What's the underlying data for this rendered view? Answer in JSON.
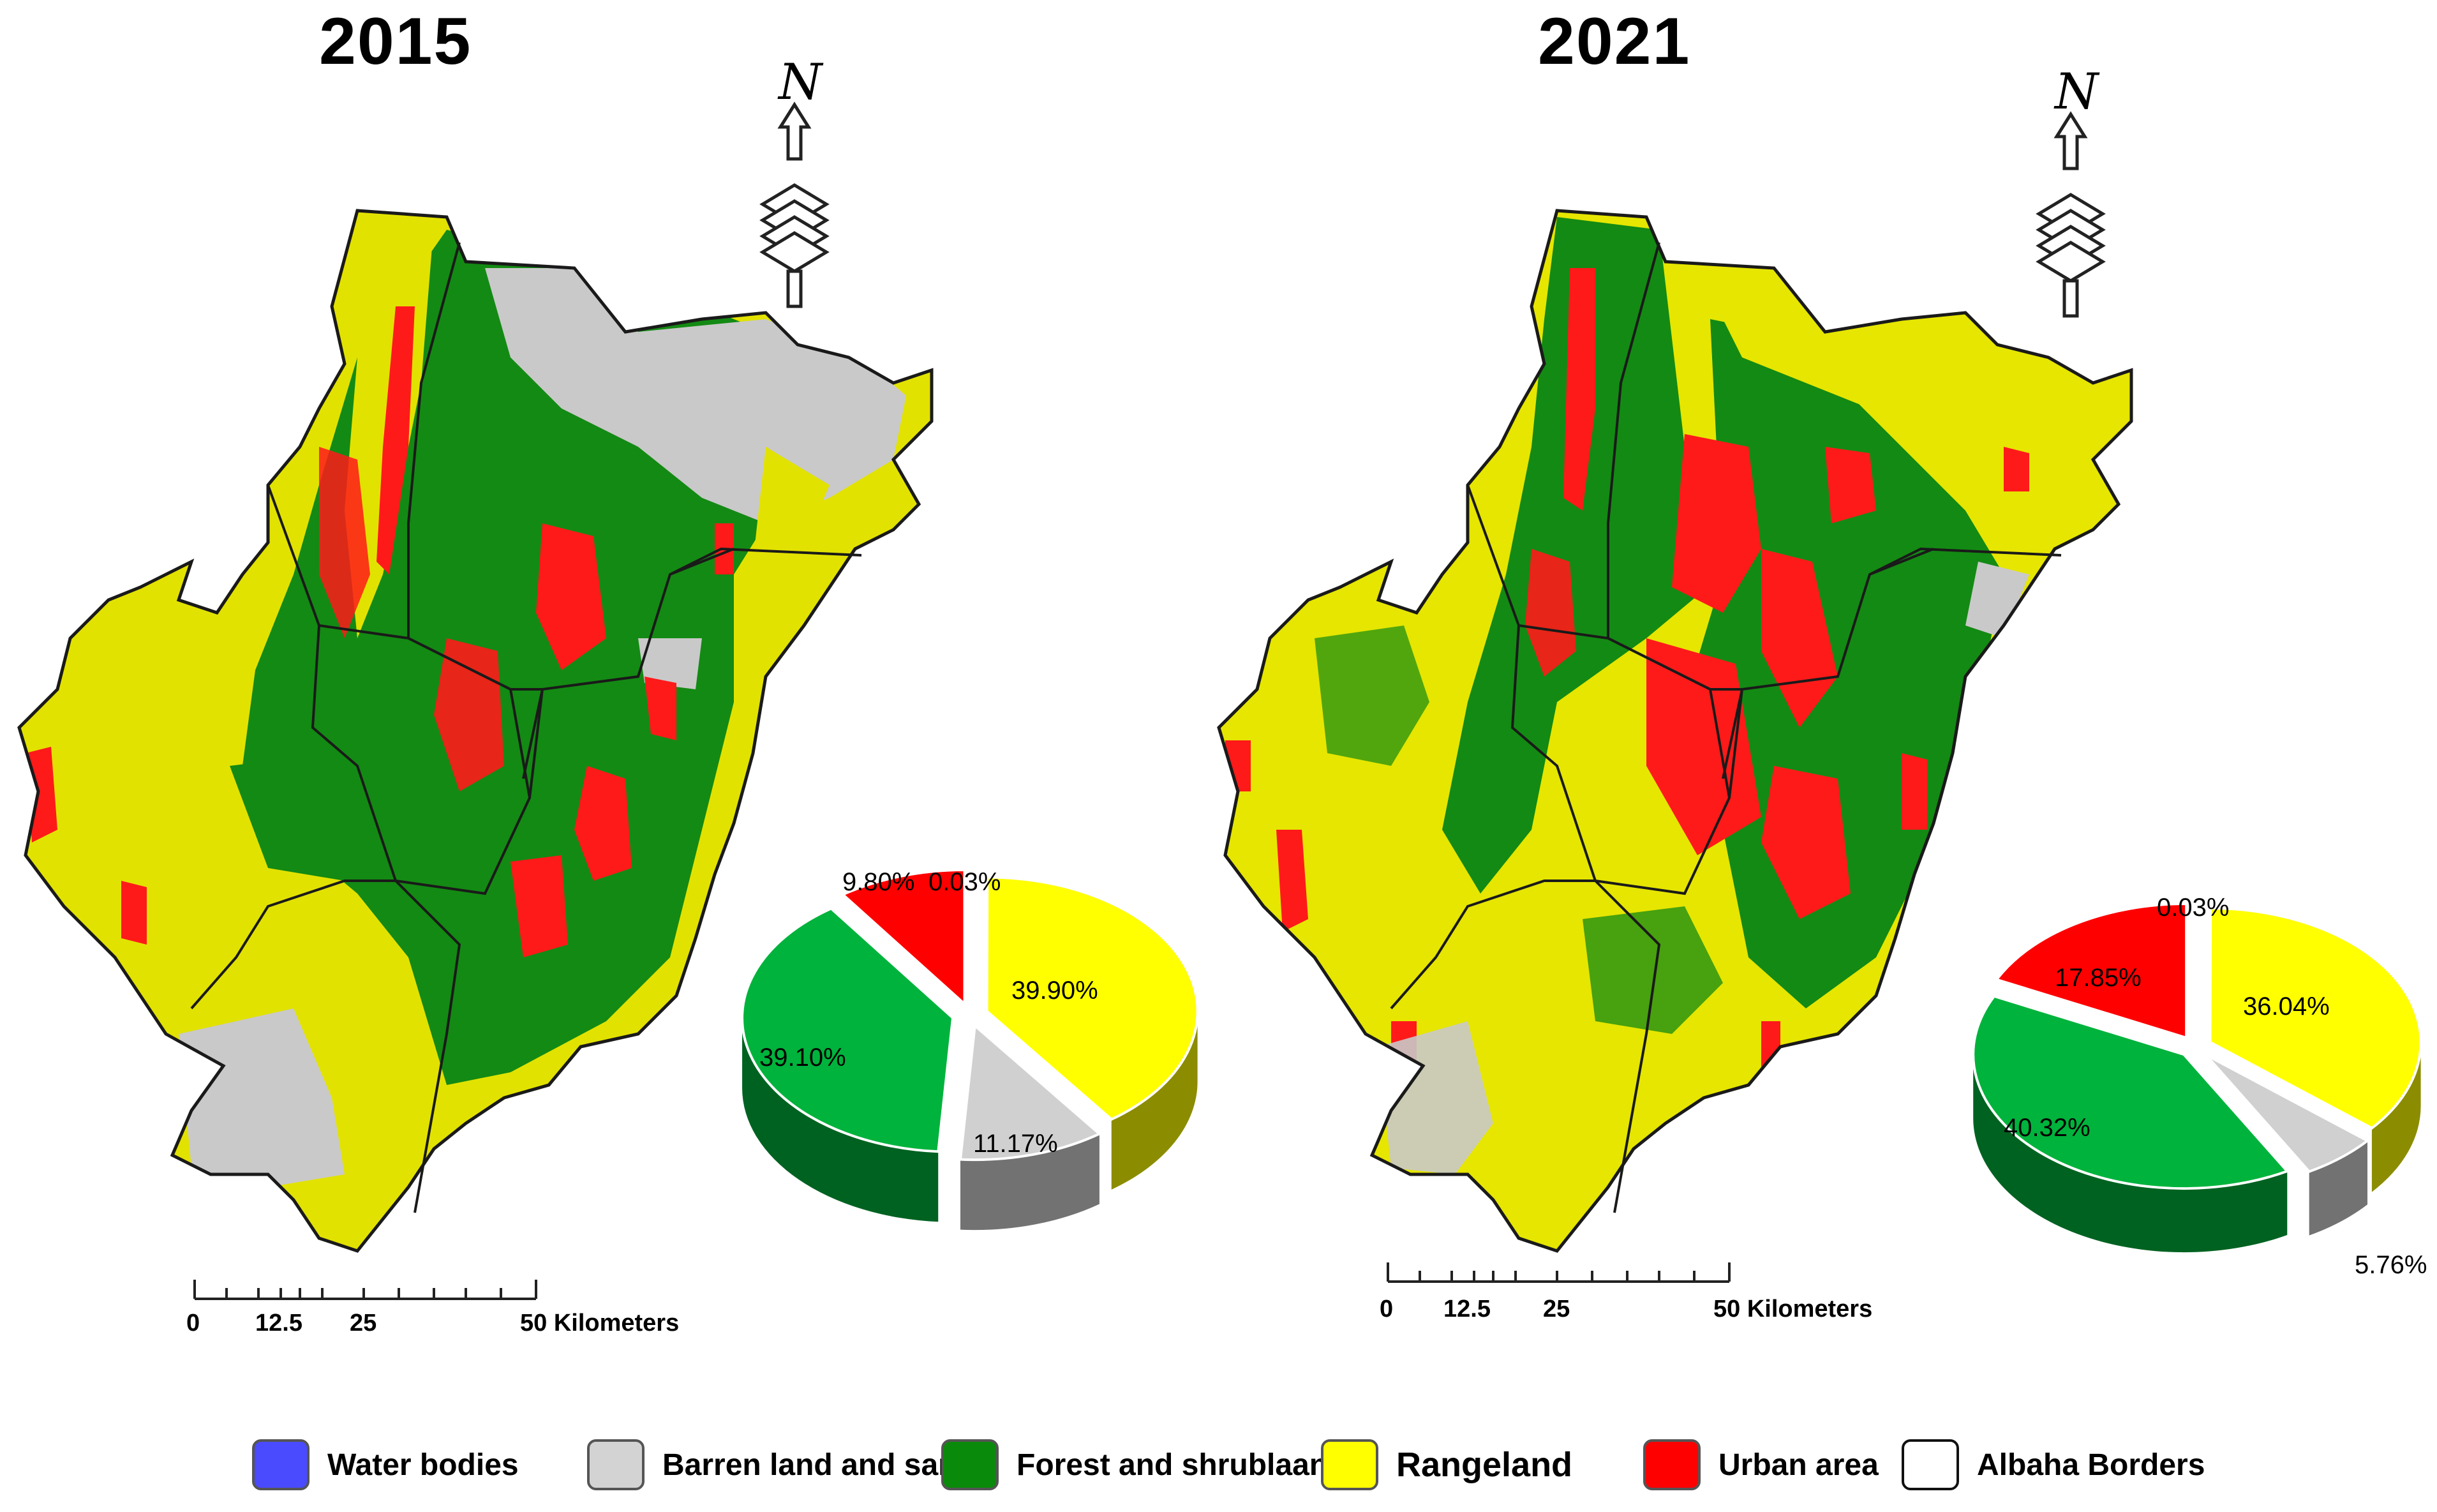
{
  "panels": [
    {
      "year": "2015",
      "pie": [
        {
          "label": "Water bodies",
          "value": 0.03,
          "text": "0.03%",
          "color": "#4a4aff"
        },
        {
          "label": "Rangeland",
          "value": 39.9,
          "text": "39.90%",
          "color": "#ffff00"
        },
        {
          "label": "Barren land and sand",
          "value": 11.17,
          "text": "11.17%",
          "color": "#d0d0d0"
        },
        {
          "label": "Forest and shrublaand",
          "value": 39.1,
          "text": "39.10%",
          "color": "#00b33c"
        },
        {
          "label": "Urban area",
          "value": 9.8,
          "text": "9.80%",
          "color": "#ff0000"
        }
      ],
      "scale": {
        "ticks": [
          "0",
          "12.5",
          "25",
          "50 Kilometers"
        ]
      }
    },
    {
      "year": "2021",
      "pie": [
        {
          "label": "Water bodies",
          "value": 0.03,
          "text": "0.03%",
          "color": "#4a4aff"
        },
        {
          "label": "Rangeland",
          "value": 36.04,
          "text": "36.04%",
          "color": "#ffff00"
        },
        {
          "label": "Barren land and sand",
          "value": 5.76,
          "text": "5.76%",
          "color": "#d0d0d0"
        },
        {
          "label": "Forest and shrublaand",
          "value": 40.32,
          "text": "40.32%",
          "color": "#00b33c"
        },
        {
          "label": "Urban area",
          "value": 17.85,
          "text": "17.85%",
          "color": "#ff0000"
        }
      ],
      "scale": {
        "ticks": [
          "0",
          "12.5",
          "25",
          "50 Kilometers"
        ]
      }
    }
  ],
  "north_label": "N",
  "legend": [
    {
      "label": "Water bodies",
      "color": "#4a4aff"
    },
    {
      "label": "Barren land and sand",
      "color": "#d3d3d3"
    },
    {
      "label": "Forest and shrublaand",
      "color": "#0a8a0a"
    },
    {
      "label": "Rangeland",
      "color": "#ffff00"
    },
    {
      "label": "Urban area",
      "color": "#ff0000"
    },
    {
      "label": "Albaha Borders",
      "color": "#ffffff"
    }
  ],
  "map_colors": {
    "forest": "#138a13",
    "rangeland": "#e6e600",
    "barren": "#c9c9c9",
    "urban": "#ff1a1a",
    "border": "#1a1a1a"
  }
}
